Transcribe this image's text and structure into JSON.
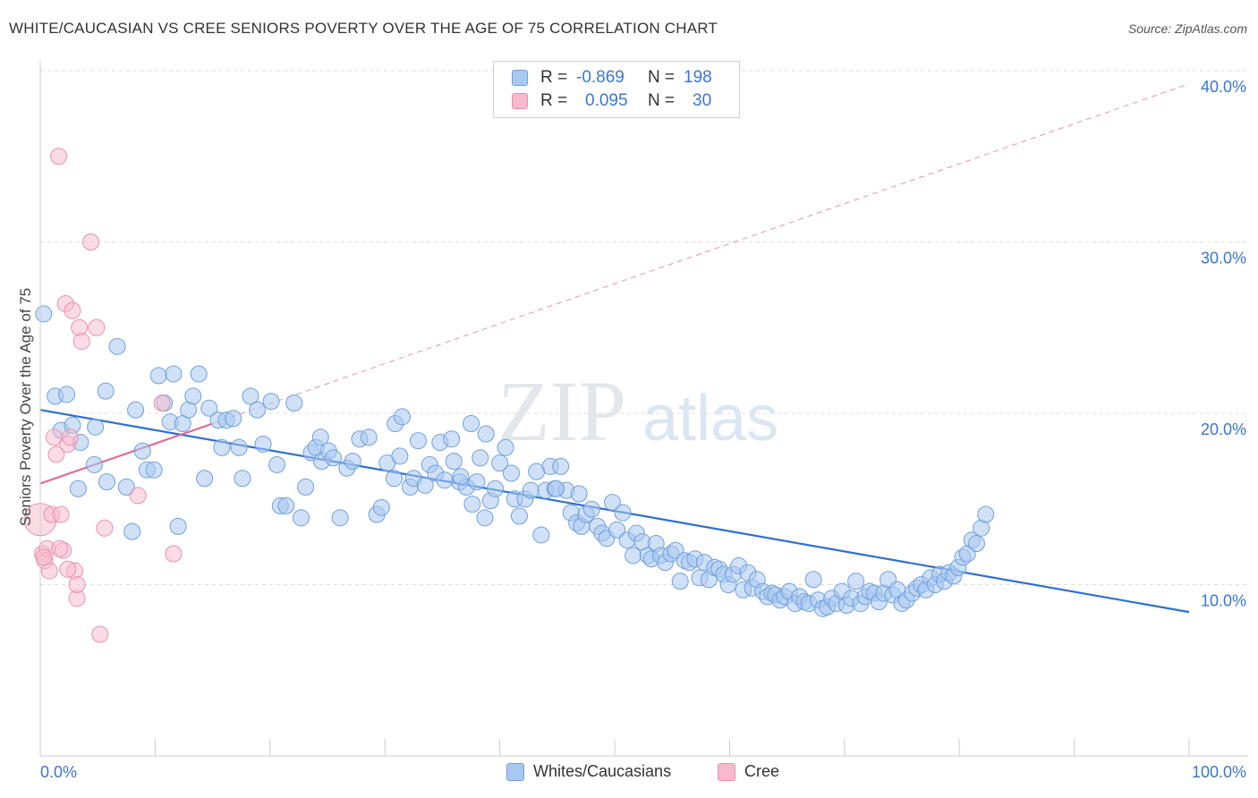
{
  "title": "WHITE/CAUCASIAN VS CREE SENIORS POVERTY OVER THE AGE OF 75 CORRELATION CHART",
  "source": "Source: ZipAtlas.com",
  "watermark": {
    "zip": "ZIP",
    "atlas": "atlas"
  },
  "colors": {
    "blue_fill": "#a9c8f0",
    "blue_stroke": "#6fa0dc",
    "blue_line": "#2e6fd0",
    "pink_fill": "#f7b9cb",
    "pink_stroke": "#e890ab",
    "pink_line": "#e06a94",
    "axis_text": "#3a76d0",
    "grid": "#dddddd"
  },
  "legend": {
    "rows": [
      {
        "r_label": "R =",
        "r_value": "-0.869",
        "n_label": "N =",
        "n_value": "198"
      },
      {
        "r_label": "R =",
        "r_value": "0.095",
        "n_label": "N =",
        "n_value": "30"
      }
    ]
  },
  "bottom_legend": {
    "series1": "Whites/Caucasians",
    "series2": "Cree"
  },
  "chart_data": {
    "type": "scatter",
    "title": "WHITE/CAUCASIAN VS CREE SENIORS POVERTY OVER THE AGE OF 75 CORRELATION CHART",
    "ylabel": "Seniors Poverty Over the Age of 75",
    "xlabel": "",
    "xlim": [
      0,
      100
    ],
    "ylim": [
      0,
      42
    ],
    "x_tick_labels": {
      "left": "0.0%",
      "right": "100.0%"
    },
    "y_ticks": [
      {
        "value": 10,
        "label": "10.0%"
      },
      {
        "value": 20,
        "label": "20.0%"
      },
      {
        "value": 30,
        "label": "30.0%"
      },
      {
        "value": 40,
        "label": "40.0%"
      }
    ],
    "series": [
      {
        "name": "Whites/Caucasians",
        "r": -0.869,
        "n": 198,
        "trend": {
          "x": [
            0,
            100
          ],
          "y": [
            20.2,
            8.4
          ]
        },
        "points": [
          [
            0.3,
            25.8
          ],
          [
            1.3,
            21.0
          ],
          [
            2.3,
            21.1
          ],
          [
            1.8,
            19.0
          ],
          [
            2.8,
            19.3
          ],
          [
            3.5,
            18.3
          ],
          [
            3.3,
            15.6
          ],
          [
            4.8,
            19.2
          ],
          [
            5.8,
            16.0
          ],
          [
            4.7,
            17.0
          ],
          [
            5.7,
            21.3
          ],
          [
            6.7,
            23.9
          ],
          [
            7.5,
            15.7
          ],
          [
            8.0,
            13.1
          ],
          [
            8.3,
            20.2
          ],
          [
            8.9,
            17.8
          ],
          [
            9.3,
            16.7
          ],
          [
            9.9,
            16.7
          ],
          [
            10.3,
            22.2
          ],
          [
            10.8,
            20.6
          ],
          [
            11.3,
            19.5
          ],
          [
            11.6,
            22.3
          ],
          [
            12.0,
            13.4
          ],
          [
            12.4,
            19.4
          ],
          [
            12.9,
            20.2
          ],
          [
            13.3,
            21.0
          ],
          [
            13.8,
            22.3
          ],
          [
            14.3,
            16.2
          ],
          [
            14.7,
            20.3
          ],
          [
            15.5,
            19.6
          ],
          [
            15.8,
            18.0
          ],
          [
            16.2,
            19.6
          ],
          [
            16.8,
            19.7
          ],
          [
            17.3,
            18.0
          ],
          [
            17.6,
            16.2
          ],
          [
            18.3,
            21.0
          ],
          [
            18.9,
            20.2
          ],
          [
            19.4,
            18.2
          ],
          [
            20.1,
            20.7
          ],
          [
            20.6,
            17.0
          ],
          [
            20.9,
            14.6
          ],
          [
            21.4,
            14.6
          ],
          [
            22.1,
            20.6
          ],
          [
            22.7,
            13.9
          ],
          [
            23.1,
            15.7
          ],
          [
            23.6,
            17.7
          ],
          [
            24.0,
            18.0
          ],
          [
            24.5,
            17.2
          ],
          [
            25.1,
            17.8
          ],
          [
            25.5,
            17.4
          ],
          [
            26.1,
            13.9
          ],
          [
            26.7,
            16.8
          ],
          [
            27.2,
            17.2
          ],
          [
            27.8,
            18.5
          ],
          [
            28.6,
            18.6
          ],
          [
            29.3,
            14.1
          ],
          [
            29.7,
            14.5
          ],
          [
            30.2,
            17.1
          ],
          [
            30.9,
            19.4
          ],
          [
            31.5,
            19.8
          ],
          [
            32.2,
            15.7
          ],
          [
            32.5,
            16.2
          ],
          [
            32.9,
            18.4
          ],
          [
            33.5,
            15.8
          ],
          [
            33.9,
            17.0
          ],
          [
            34.4,
            16.5
          ],
          [
            34.8,
            18.3
          ],
          [
            35.2,
            16.1
          ],
          [
            35.8,
            18.5
          ],
          [
            36.0,
            17.2
          ],
          [
            36.5,
            16.0
          ],
          [
            37.1,
            15.7
          ],
          [
            37.6,
            14.7
          ],
          [
            38.0,
            16.0
          ],
          [
            38.3,
            17.4
          ],
          [
            38.7,
            13.9
          ],
          [
            39.2,
            14.9
          ],
          [
            39.6,
            15.6
          ],
          [
            40.0,
            17.1
          ],
          [
            40.5,
            18.0
          ],
          [
            41.0,
            16.5
          ],
          [
            41.3,
            15.0
          ],
          [
            41.7,
            14.0
          ],
          [
            42.2,
            15.0
          ],
          [
            42.7,
            15.5
          ],
          [
            43.2,
            16.6
          ],
          [
            43.6,
            12.9
          ],
          [
            44.0,
            15.5
          ],
          [
            44.4,
            16.9
          ],
          [
            44.8,
            15.6
          ],
          [
            45.3,
            16.9
          ],
          [
            45.8,
            15.5
          ],
          [
            46.2,
            14.2
          ],
          [
            46.7,
            13.6
          ],
          [
            47.1,
            13.4
          ],
          [
            47.5,
            14.1
          ],
          [
            48.0,
            14.4
          ],
          [
            48.5,
            13.4
          ],
          [
            48.9,
            13.0
          ],
          [
            49.3,
            12.7
          ],
          [
            49.8,
            14.8
          ],
          [
            50.2,
            13.2
          ],
          [
            50.7,
            14.2
          ],
          [
            51.1,
            12.6
          ],
          [
            51.6,
            11.7
          ],
          [
            51.9,
            13.0
          ],
          [
            52.4,
            12.5
          ],
          [
            52.9,
            11.7
          ],
          [
            53.2,
            11.5
          ],
          [
            53.6,
            12.4
          ],
          [
            54.0,
            11.7
          ],
          [
            54.4,
            11.3
          ],
          [
            54.9,
            11.8
          ],
          [
            55.3,
            12.0
          ],
          [
            55.7,
            10.2
          ],
          [
            56.1,
            11.4
          ],
          [
            56.5,
            11.3
          ],
          [
            57.0,
            11.5
          ],
          [
            57.4,
            10.4
          ],
          [
            57.8,
            11.3
          ],
          [
            58.2,
            10.3
          ],
          [
            58.7,
            11.0
          ],
          [
            59.1,
            10.9
          ],
          [
            59.5,
            10.6
          ],
          [
            59.9,
            10.0
          ],
          [
            60.3,
            10.6
          ],
          [
            60.8,
            11.1
          ],
          [
            61.2,
            9.7
          ],
          [
            61.6,
            10.7
          ],
          [
            62.0,
            9.8
          ],
          [
            62.4,
            10.3
          ],
          [
            62.9,
            9.6
          ],
          [
            63.3,
            9.3
          ],
          [
            63.7,
            9.5
          ],
          [
            64.0,
            9.4
          ],
          [
            64.4,
            9.1
          ],
          [
            64.8,
            9.3
          ],
          [
            65.2,
            9.6
          ],
          [
            65.7,
            8.9
          ],
          [
            66.1,
            9.3
          ],
          [
            66.5,
            9.0
          ],
          [
            66.9,
            8.9
          ],
          [
            67.3,
            10.3
          ],
          [
            67.7,
            9.1
          ],
          [
            68.1,
            8.6
          ],
          [
            68.5,
            8.7
          ],
          [
            68.9,
            9.2
          ],
          [
            69.3,
            8.9
          ],
          [
            69.8,
            9.6
          ],
          [
            70.2,
            8.8
          ],
          [
            70.6,
            9.2
          ],
          [
            71.0,
            10.2
          ],
          [
            71.4,
            8.9
          ],
          [
            71.8,
            9.3
          ],
          [
            72.2,
            9.6
          ],
          [
            72.6,
            9.5
          ],
          [
            73.0,
            9.0
          ],
          [
            73.4,
            9.5
          ],
          [
            73.8,
            10.3
          ],
          [
            74.2,
            9.4
          ],
          [
            74.6,
            9.7
          ],
          [
            75.0,
            8.9
          ],
          [
            75.4,
            9.1
          ],
          [
            75.9,
            9.5
          ],
          [
            76.3,
            9.8
          ],
          [
            76.7,
            10.0
          ],
          [
            77.1,
            9.7
          ],
          [
            77.5,
            10.4
          ],
          [
            77.9,
            10.0
          ],
          [
            78.3,
            10.6
          ],
          [
            78.7,
            10.2
          ],
          [
            79.1,
            10.7
          ],
          [
            79.5,
            10.5
          ],
          [
            79.9,
            11.0
          ],
          [
            80.3,
            11.6
          ],
          [
            80.7,
            11.8
          ],
          [
            81.1,
            12.6
          ],
          [
            81.5,
            12.4
          ],
          [
            81.9,
            13.3
          ],
          [
            82.3,
            14.1
          ],
          [
            24.4,
            18.6
          ],
          [
            31.3,
            17.5
          ],
          [
            38.8,
            18.8
          ],
          [
            37.5,
            19.4
          ],
          [
            36.6,
            16.3
          ],
          [
            46.9,
            15.3
          ],
          [
            44.9,
            15.6
          ],
          [
            30.8,
            16.2
          ]
        ]
      },
      {
        "name": "Cree",
        "r": 0.095,
        "n": 30,
        "trend": {
          "x": [
            0,
            15
          ],
          "y": [
            15.9,
            19.4
          ]
        },
        "points": [
          [
            0.0,
            13.8
          ],
          [
            0.2,
            11.8
          ],
          [
            0.4,
            11.4
          ],
          [
            0.6,
            12.1
          ],
          [
            0.8,
            10.8
          ],
          [
            1.0,
            14.1
          ],
          [
            1.2,
            18.6
          ],
          [
            1.4,
            17.6
          ],
          [
            1.6,
            35.0
          ],
          [
            1.8,
            14.1
          ],
          [
            2.0,
            12.0
          ],
          [
            2.2,
            26.4
          ],
          [
            2.4,
            18.2
          ],
          [
            2.6,
            18.6
          ],
          [
            2.8,
            26.0
          ],
          [
            3.0,
            10.8
          ],
          [
            3.2,
            9.2
          ],
          [
            3.4,
            25.0
          ],
          [
            3.6,
            24.2
          ],
          [
            4.4,
            30.0
          ],
          [
            4.9,
            25.0
          ],
          [
            5.2,
            7.1
          ],
          [
            5.6,
            13.3
          ],
          [
            8.5,
            15.2
          ],
          [
            10.6,
            20.6
          ],
          [
            11.6,
            11.8
          ],
          [
            2.4,
            10.9
          ],
          [
            0.3,
            11.6
          ],
          [
            3.2,
            10.0
          ],
          [
            1.7,
            12.1
          ]
        ]
      }
    ]
  }
}
